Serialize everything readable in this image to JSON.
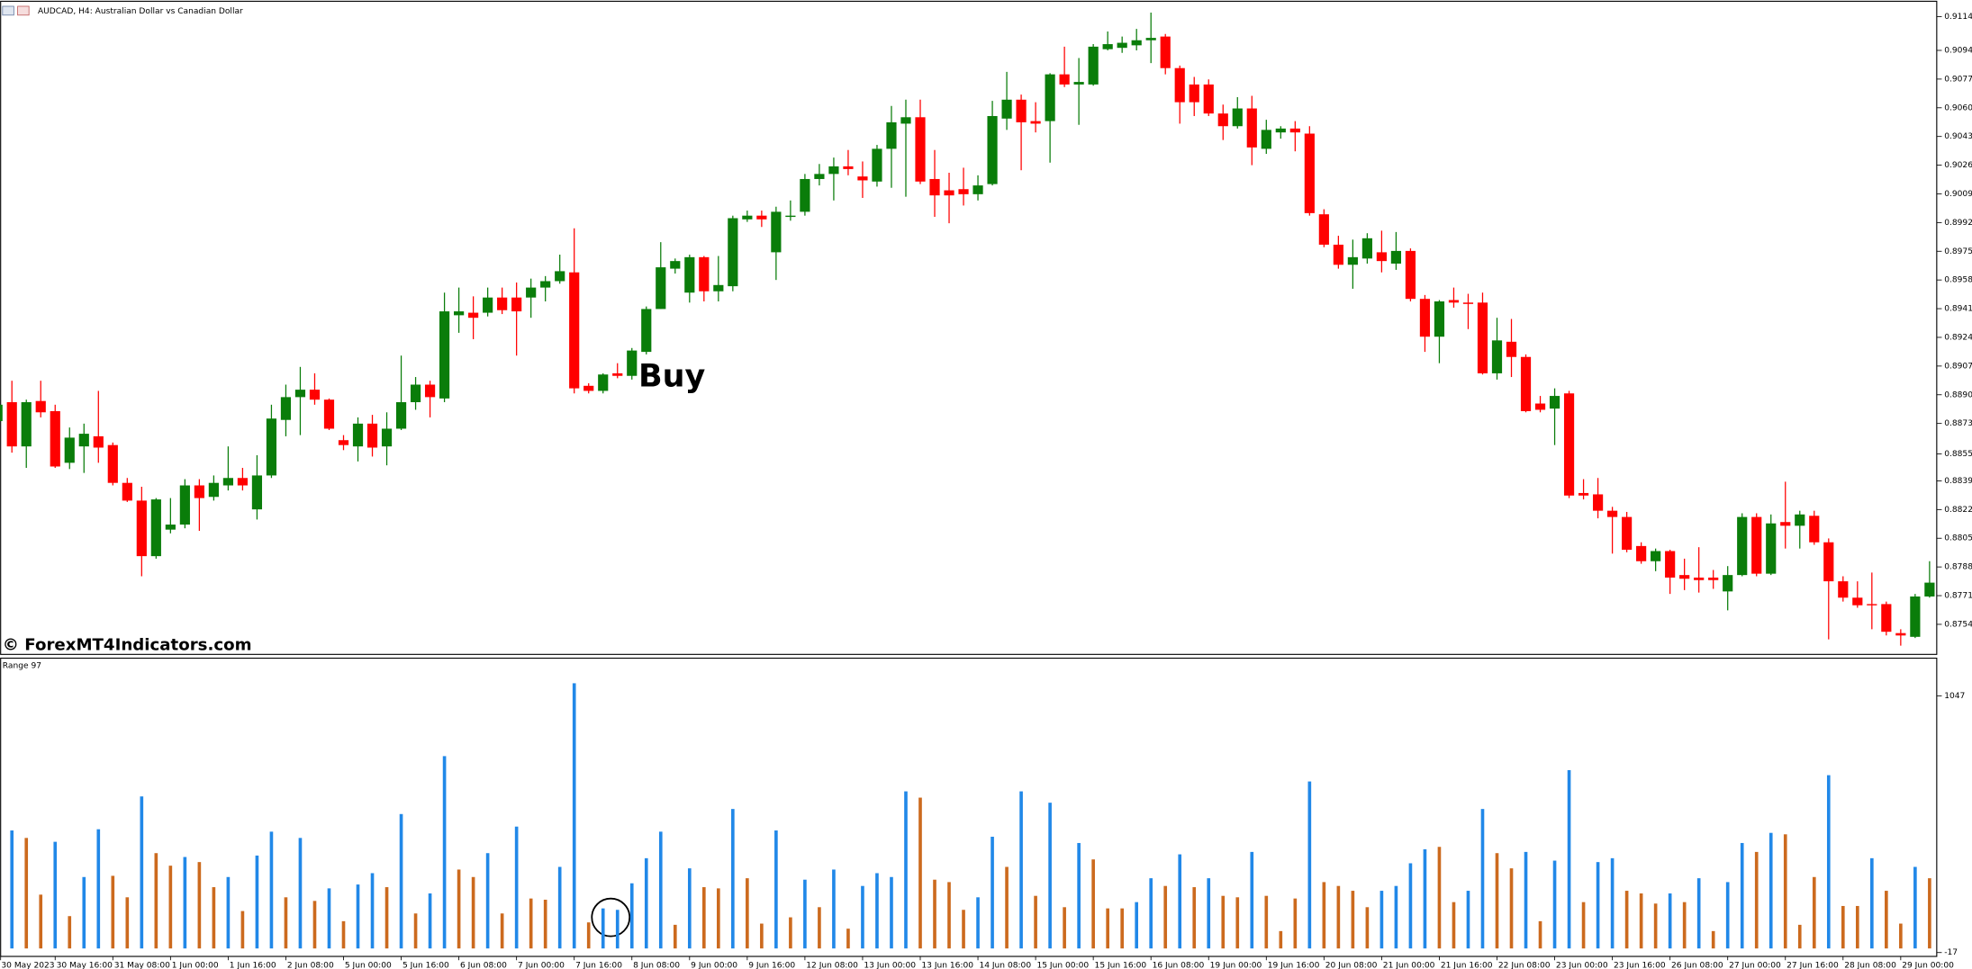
{
  "chart_data": [
    {
      "type": "candlestick",
      "title": "AUDCAD, H4:  Australian Dollar vs Canadian Dollar",
      "annotation": "Buy",
      "watermark": "© ForexMT4Indicators.com",
      "up_color": "#0a7d0a",
      "down_color": "#ff0000",
      "categories": [
        "30 May 2023",
        null,
        null,
        null,
        "30 May 16:00",
        null,
        null,
        null,
        "31 May 08:00",
        null,
        null,
        null,
        "1 Jun 00:00",
        null,
        null,
        null,
        "1 Jun 16:00",
        null,
        null,
        null,
        "2 Jun 08:00",
        null,
        null,
        null,
        "5 Jun 00:00",
        null,
        null,
        null,
        "5 Jun 16:00",
        null,
        null,
        null,
        "6 Jun 08:00",
        null,
        null,
        null,
        "7 Jun 00:00",
        null,
        null,
        null,
        "7 Jun 16:00",
        null,
        null,
        null,
        "8 Jun 08:00",
        null,
        null,
        null,
        "9 Jun 00:00",
        null,
        null,
        null,
        "9 Jun 16:00",
        null,
        null,
        null,
        "12 Jun 08:00",
        null,
        null,
        null,
        "13 Jun 00:00",
        null,
        null,
        null,
        "13 Jun 16:00",
        null,
        null,
        null,
        "14 Jun 08:00",
        null,
        null,
        null,
        "15 Jun 00:00",
        null,
        null,
        null,
        "15 Jun 16:00",
        null,
        null,
        null,
        "16 Jun 08:00",
        null,
        null,
        null,
        "19 Jun 00:00",
        null,
        null,
        null,
        "19 Jun 16:00",
        null,
        null,
        null,
        "20 Jun 08:00",
        null,
        null,
        null,
        "21 Jun 00:00",
        null,
        null,
        null,
        "21 Jun 16:00",
        null,
        null,
        null,
        "22 Jun 08:00",
        null,
        null,
        null,
        "23 Jun 00:00",
        null,
        null,
        null,
        "23 Jun 16:00",
        null,
        null,
        null,
        "26 Jun 08:00",
        null,
        null,
        null,
        "27 Jun 00:00",
        null,
        null,
        null,
        "27 Jun 16:00",
        null,
        null,
        null,
        "28 Jun 08:00",
        null,
        null,
        null,
        "29 Jun 00:00",
        null,
        null
      ],
      "open": [
        0.88744,
        0.88856,
        0.88594,
        0.88863,
        0.88803,
        0.88497,
        0.88594,
        0.88654,
        0.88602,
        0.88378,
        0.88273,
        0.87944,
        0.88101,
        0.88131,
        0.88363,
        0.88295,
        0.88363,
        0.88407,
        0.88221,
        0.88422,
        0.88751,
        0.88886,
        0.8893,
        0.88871,
        0.88631,
        0.88594,
        0.88729,
        0.88594,
        0.88699,
        0.88856,
        0.8896,
        0.88878,
        0.89371,
        0.89386,
        0.89386,
        0.89476,
        0.89476,
        0.89476,
        0.89535,
        0.89573,
        0.89625,
        0.88953,
        0.88923,
        0.89027,
        0.89012,
        0.89154,
        0.89408,
        0.89647,
        0.89505,
        0.89715,
        0.89513,
        0.89543,
        0.89939,
        0.89961,
        0.89744,
        0.89954,
        0.89984,
        0.90178,
        0.90208,
        0.90253,
        0.90193,
        0.90163,
        0.90357,
        0.90506,
        0.90544,
        0.90178,
        0.90111,
        0.90118,
        0.90088,
        0.90148,
        0.90536,
        0.90648,
        0.90521,
        0.90521,
        0.90798,
        0.90738,
        0.90738,
        0.90947,
        0.90955,
        0.9097,
        0.91,
        0.91022,
        0.90835,
        0.90738,
        0.90738,
        0.90566,
        0.90491,
        0.90596,
        0.90357,
        0.90454,
        0.90477,
        0.90447,
        0.89969,
        0.89789,
        0.8967,
        0.89707,
        0.89744,
        0.89677,
        0.89752,
        0.89468,
        0.89244,
        0.89461,
        0.89446,
        0.89446,
        0.89027,
        0.89214,
        0.89124,
        0.88848,
        0.88818,
        0.88908,
        0.88318,
        0.8831,
        0.88213,
        0.88176,
        0.88004,
        0.87914,
        0.87974,
        0.87832,
        0.87817,
        0.87817,
        0.87735,
        0.87832,
        0.88176,
        0.8784,
        0.88146,
        0.88124,
        0.88183,
        0.88026,
        0.87795,
        0.87698,
        0.8766,
        0.8766,
        0.87488,
        0.87466,
        0.87705
      ],
      "high": [
        0.88871,
        0.88983,
        0.88871,
        0.88983,
        0.88841,
        0.88706,
        0.88729,
        0.88923,
        0.88617,
        0.88407,
        0.88355,
        0.88288,
        0.88288,
        0.884,
        0.884,
        0.88422,
        0.88594,
        0.88467,
        0.88542,
        0.88841,
        0.8896,
        0.89065,
        0.89027,
        0.88878,
        0.88661,
        0.88766,
        0.88781,
        0.88796,
        0.89132,
        0.89005,
        0.88983,
        0.89505,
        0.89535,
        0.89483,
        0.89535,
        0.89535,
        0.89565,
        0.89588,
        0.89603,
        0.8973,
        0.89886,
        0.88968,
        0.89027,
        0.89087,
        0.89177,
        0.89423,
        0.89804,
        0.89707,
        0.8973,
        0.89722,
        0.89722,
        0.89961,
        0.89991,
        0.89991,
        0.90014,
        0.90051,
        0.90208,
        0.90267,
        0.90305,
        0.9035,
        0.90282,
        0.9038,
        0.90611,
        0.90648,
        0.90648,
        0.9035,
        0.90215,
        0.90245,
        0.902,
        0.90641,
        0.90813,
        0.90678,
        0.90633,
        0.90805,
        0.90962,
        0.90895,
        0.90977,
        0.91052,
        0.91022,
        0.91067,
        0.91164,
        0.91037,
        0.9085,
        0.90783,
        0.90768,
        0.90619,
        0.90663,
        0.90671,
        0.90529,
        0.90491,
        0.90521,
        0.90491,
        0.89999,
        0.89842,
        0.89819,
        0.89857,
        0.89872,
        0.89864,
        0.89767,
        0.89491,
        0.89461,
        0.89535,
        0.89498,
        0.89505,
        0.89356,
        0.89349,
        0.89139,
        0.88893,
        0.88938,
        0.88923,
        0.884,
        0.88407,
        0.88236,
        0.88206,
        0.88026,
        0.87989,
        0.87982,
        0.87929,
        0.87997,
        0.87862,
        0.87885,
        0.88198,
        0.88198,
        0.88191,
        0.88385,
        0.88213,
        0.88213,
        0.88049,
        0.87825,
        0.87795,
        0.87847,
        0.87675,
        0.87511,
        0.8772,
        0.87914
      ],
      "low": [
        0.88729,
        0.88557,
        0.88467,
        0.88766,
        0.88467,
        0.8846,
        0.88437,
        0.88497,
        0.88363,
        0.88265,
        0.87825,
        0.87929,
        0.88079,
        0.88109,
        0.88094,
        0.88273,
        0.88333,
        0.88333,
        0.88161,
        0.88407,
        0.88654,
        0.88661,
        0.88841,
        0.88691,
        0.88572,
        0.88505,
        0.88534,
        0.88482,
        0.88691,
        0.88811,
        0.88766,
        0.88856,
        0.89267,
        0.89229,
        0.89364,
        0.89378,
        0.89132,
        0.89356,
        0.89453,
        0.89558,
        0.88908,
        0.88908,
        0.88908,
        0.88998,
        0.8899,
        0.89139,
        0.89408,
        0.89618,
        0.89446,
        0.89453,
        0.89453,
        0.89513,
        0.89924,
        0.89894,
        0.8958,
        0.89931,
        0.89961,
        0.9014,
        0.90051,
        0.902,
        0.90066,
        0.90133,
        0.90126,
        0.90073,
        0.90148,
        0.89954,
        0.89916,
        0.90021,
        0.90051,
        0.9014,
        0.90469,
        0.9023,
        0.90454,
        0.90275,
        0.90723,
        0.90499,
        0.90731,
        0.9094,
        0.90925,
        0.9094,
        0.90865,
        0.90798,
        0.90506,
        0.90551,
        0.90551,
        0.90409,
        0.90477,
        0.9026,
        0.90327,
        0.90417,
        0.90342,
        0.89961,
        0.89774,
        0.89647,
        0.89528,
        0.89677,
        0.89625,
        0.8964,
        0.89453,
        0.89154,
        0.89087,
        0.89416,
        0.89289,
        0.8902,
        0.8899,
        0.89005,
        0.88796,
        0.88796,
        0.88602,
        0.88288,
        0.8828,
        0.88168,
        0.87959,
        0.87967,
        0.87899,
        0.87855,
        0.8772,
        0.87743,
        0.87728,
        0.8775,
        0.87623,
        0.87825,
        0.87825,
        0.87832,
        0.87989,
        0.87989,
        0.88011,
        0.87451,
        0.87675,
        0.87638,
        0.87511,
        0.87474,
        0.87414,
        0.87459,
        0.87698
      ],
      "close": [
        0.88841,
        0.88594,
        0.88856,
        0.88796,
        0.88475,
        0.88646,
        0.88669,
        0.88587,
        0.88378,
        0.88273,
        0.87944,
        0.8828,
        0.88131,
        0.88363,
        0.88288,
        0.88378,
        0.88407,
        0.88363,
        0.88422,
        0.88759,
        0.88886,
        0.8893,
        0.88871,
        0.88699,
        0.88602,
        0.88729,
        0.88587,
        0.88699,
        0.88856,
        0.8896,
        0.88886,
        0.89394,
        0.89394,
        0.89356,
        0.89476,
        0.89401,
        0.89394,
        0.89535,
        0.89573,
        0.89632,
        0.88938,
        0.88923,
        0.8902,
        0.89012,
        0.89162,
        0.89408,
        0.89655,
        0.89692,
        0.89715,
        0.89513,
        0.8955,
        0.89946,
        0.89961,
        0.89939,
        0.89984,
        0.89961,
        0.90178,
        0.90208,
        0.90253,
        0.90237,
        0.9017,
        0.90357,
        0.90514,
        0.90544,
        0.90163,
        0.90081,
        0.90081,
        0.90088,
        0.9014,
        0.90551,
        0.90648,
        0.90514,
        0.90506,
        0.90798,
        0.90738,
        0.90753,
        0.90962,
        0.90977,
        0.90985,
        0.91,
        0.91014,
        0.90835,
        0.90633,
        0.90633,
        0.90566,
        0.90491,
        0.90596,
        0.90365,
        0.90469,
        0.90477,
        0.90454,
        0.89976,
        0.89789,
        0.8967,
        0.89715,
        0.89827,
        0.89692,
        0.89752,
        0.89468,
        0.89244,
        0.89453,
        0.89446,
        0.89438,
        0.89027,
        0.89222,
        0.89124,
        0.88803,
        0.88811,
        0.88893,
        0.88303,
        0.88303,
        0.88213,
        0.88176,
        0.87982,
        0.87914,
        0.87974,
        0.87817,
        0.8781,
        0.87802,
        0.87802,
        0.87832,
        0.88176,
        0.8784,
        0.88138,
        0.88124,
        0.88191,
        0.88026,
        0.87795,
        0.87698,
        0.87653,
        0.87653,
        0.87496,
        0.87474,
        0.87705,
        0.87787
      ],
      "ylim": [
        0.87362,
        0.91231
      ],
      "yticks": [
        {
          "value": 0.9114,
          "label": "0.91140"
        },
        {
          "value": 0.9094,
          "label": "0.90940"
        },
        {
          "value": 0.9077,
          "label": "0.90770"
        },
        {
          "value": 0.906,
          "label": "0.90600"
        },
        {
          "value": 0.9043,
          "label": "0.90430"
        },
        {
          "value": 0.9026,
          "label": "0.90260"
        },
        {
          "value": 0.9009,
          "label": "0.90090"
        },
        {
          "value": 0.8992,
          "label": "0.89920"
        },
        {
          "value": 0.8975,
          "label": "0.89750"
        },
        {
          "value": 0.8958,
          "label": "0.89580"
        },
        {
          "value": 0.8941,
          "label": "0.89410"
        },
        {
          "value": 0.8924,
          "label": "0.89240"
        },
        {
          "value": 0.8907,
          "label": "0.89070"
        },
        {
          "value": 0.889,
          "label": "0.88900"
        },
        {
          "value": 0.8873,
          "label": "0.88730"
        },
        {
          "value": 0.8855,
          "label": "0.88550"
        },
        {
          "value": 0.8839,
          "label": "0.88390"
        },
        {
          "value": 0.8822,
          "label": "0.88220"
        },
        {
          "value": 0.8805,
          "label": "0.88050"
        },
        {
          "value": 0.8788,
          "label": "0.87880"
        },
        {
          "value": 0.8771,
          "label": "0.87710"
        },
        {
          "value": 0.8754,
          "label": "0.87540"
        }
      ]
    },
    {
      "type": "bar",
      "label": "Range 97",
      "palette": [
        "#2188e8",
        "#cc6a1e"
      ],
      "values": [
        null,
        489,
        458,
        223,
        442,
        134,
        296,
        494,
        301,
        212,
        630,
        395,
        343,
        379,
        358,
        254,
        296,
        155,
        385,
        484,
        212,
        458,
        197,
        249,
        113,
        265,
        312,
        254,
        557,
        145,
        228,
        797,
        327,
        296,
        395,
        145,
        505,
        207,
        202,
        338,
        1099,
        108,
        166,
        160,
        270,
        374,
        484,
        98,
        332,
        254,
        249,
        578,
        291,
        103,
        489,
        129,
        285,
        171,
        327,
        82,
        259,
        312,
        296,
        651,
        625,
        285,
        275,
        160,
        212,
        463,
        338,
        651,
        218,
        604,
        171,
        437,
        369,
        166,
        166,
        192,
        291,
        259,
        390,
        254,
        291,
        218,
        212,
        400,
        218,
        72,
        207,
        692,
        275,
        259,
        239,
        171,
        239,
        259,
        353,
        411,
        421,
        192,
        239,
        578,
        395,
        332,
        400,
        113,
        364,
        739,
        192,
        358,
        374,
        239,
        228,
        186,
        228,
        192,
        291,
        72,
        275,
        437,
        400,
        479,
        473,
        98,
        296,
        718,
        176,
        176,
        374,
        239,
        103,
        338,
        291
      ],
      "color_index": [
        null,
        0,
        1,
        1,
        0,
        1,
        0,
        0,
        1,
        1,
        0,
        1,
        1,
        0,
        1,
        1,
        0,
        1,
        0,
        0,
        1,
        0,
        1,
        0,
        1,
        0,
        0,
        1,
        0,
        1,
        0,
        0,
        1,
        1,
        0,
        1,
        0,
        1,
        1,
        0,
        0,
        1,
        0,
        0,
        0,
        0,
        0,
        1,
        0,
        1,
        1,
        0,
        1,
        1,
        0,
        1,
        0,
        1,
        0,
        1,
        0,
        0,
        0,
        0,
        1,
        1,
        1,
        1,
        0,
        0,
        1,
        0,
        1,
        0,
        1,
        0,
        1,
        1,
        1,
        0,
        0,
        1,
        0,
        1,
        0,
        1,
        1,
        0,
        1,
        1,
        1,
        0,
        1,
        1,
        1,
        1,
        0,
        0,
        0,
        0,
        1,
        1,
        0,
        0,
        1,
        1,
        0,
        1,
        0,
        0,
        1,
        0,
        0,
        1,
        1,
        1,
        0,
        1,
        0,
        1,
        0,
        0,
        1,
        0,
        1,
        1,
        1,
        0,
        1,
        1,
        0,
        1,
        1,
        0,
        1
      ],
      "ylim": [
        -33,
        1203
      ],
      "yticks": [
        1047,
        -17
      ]
    }
  ]
}
